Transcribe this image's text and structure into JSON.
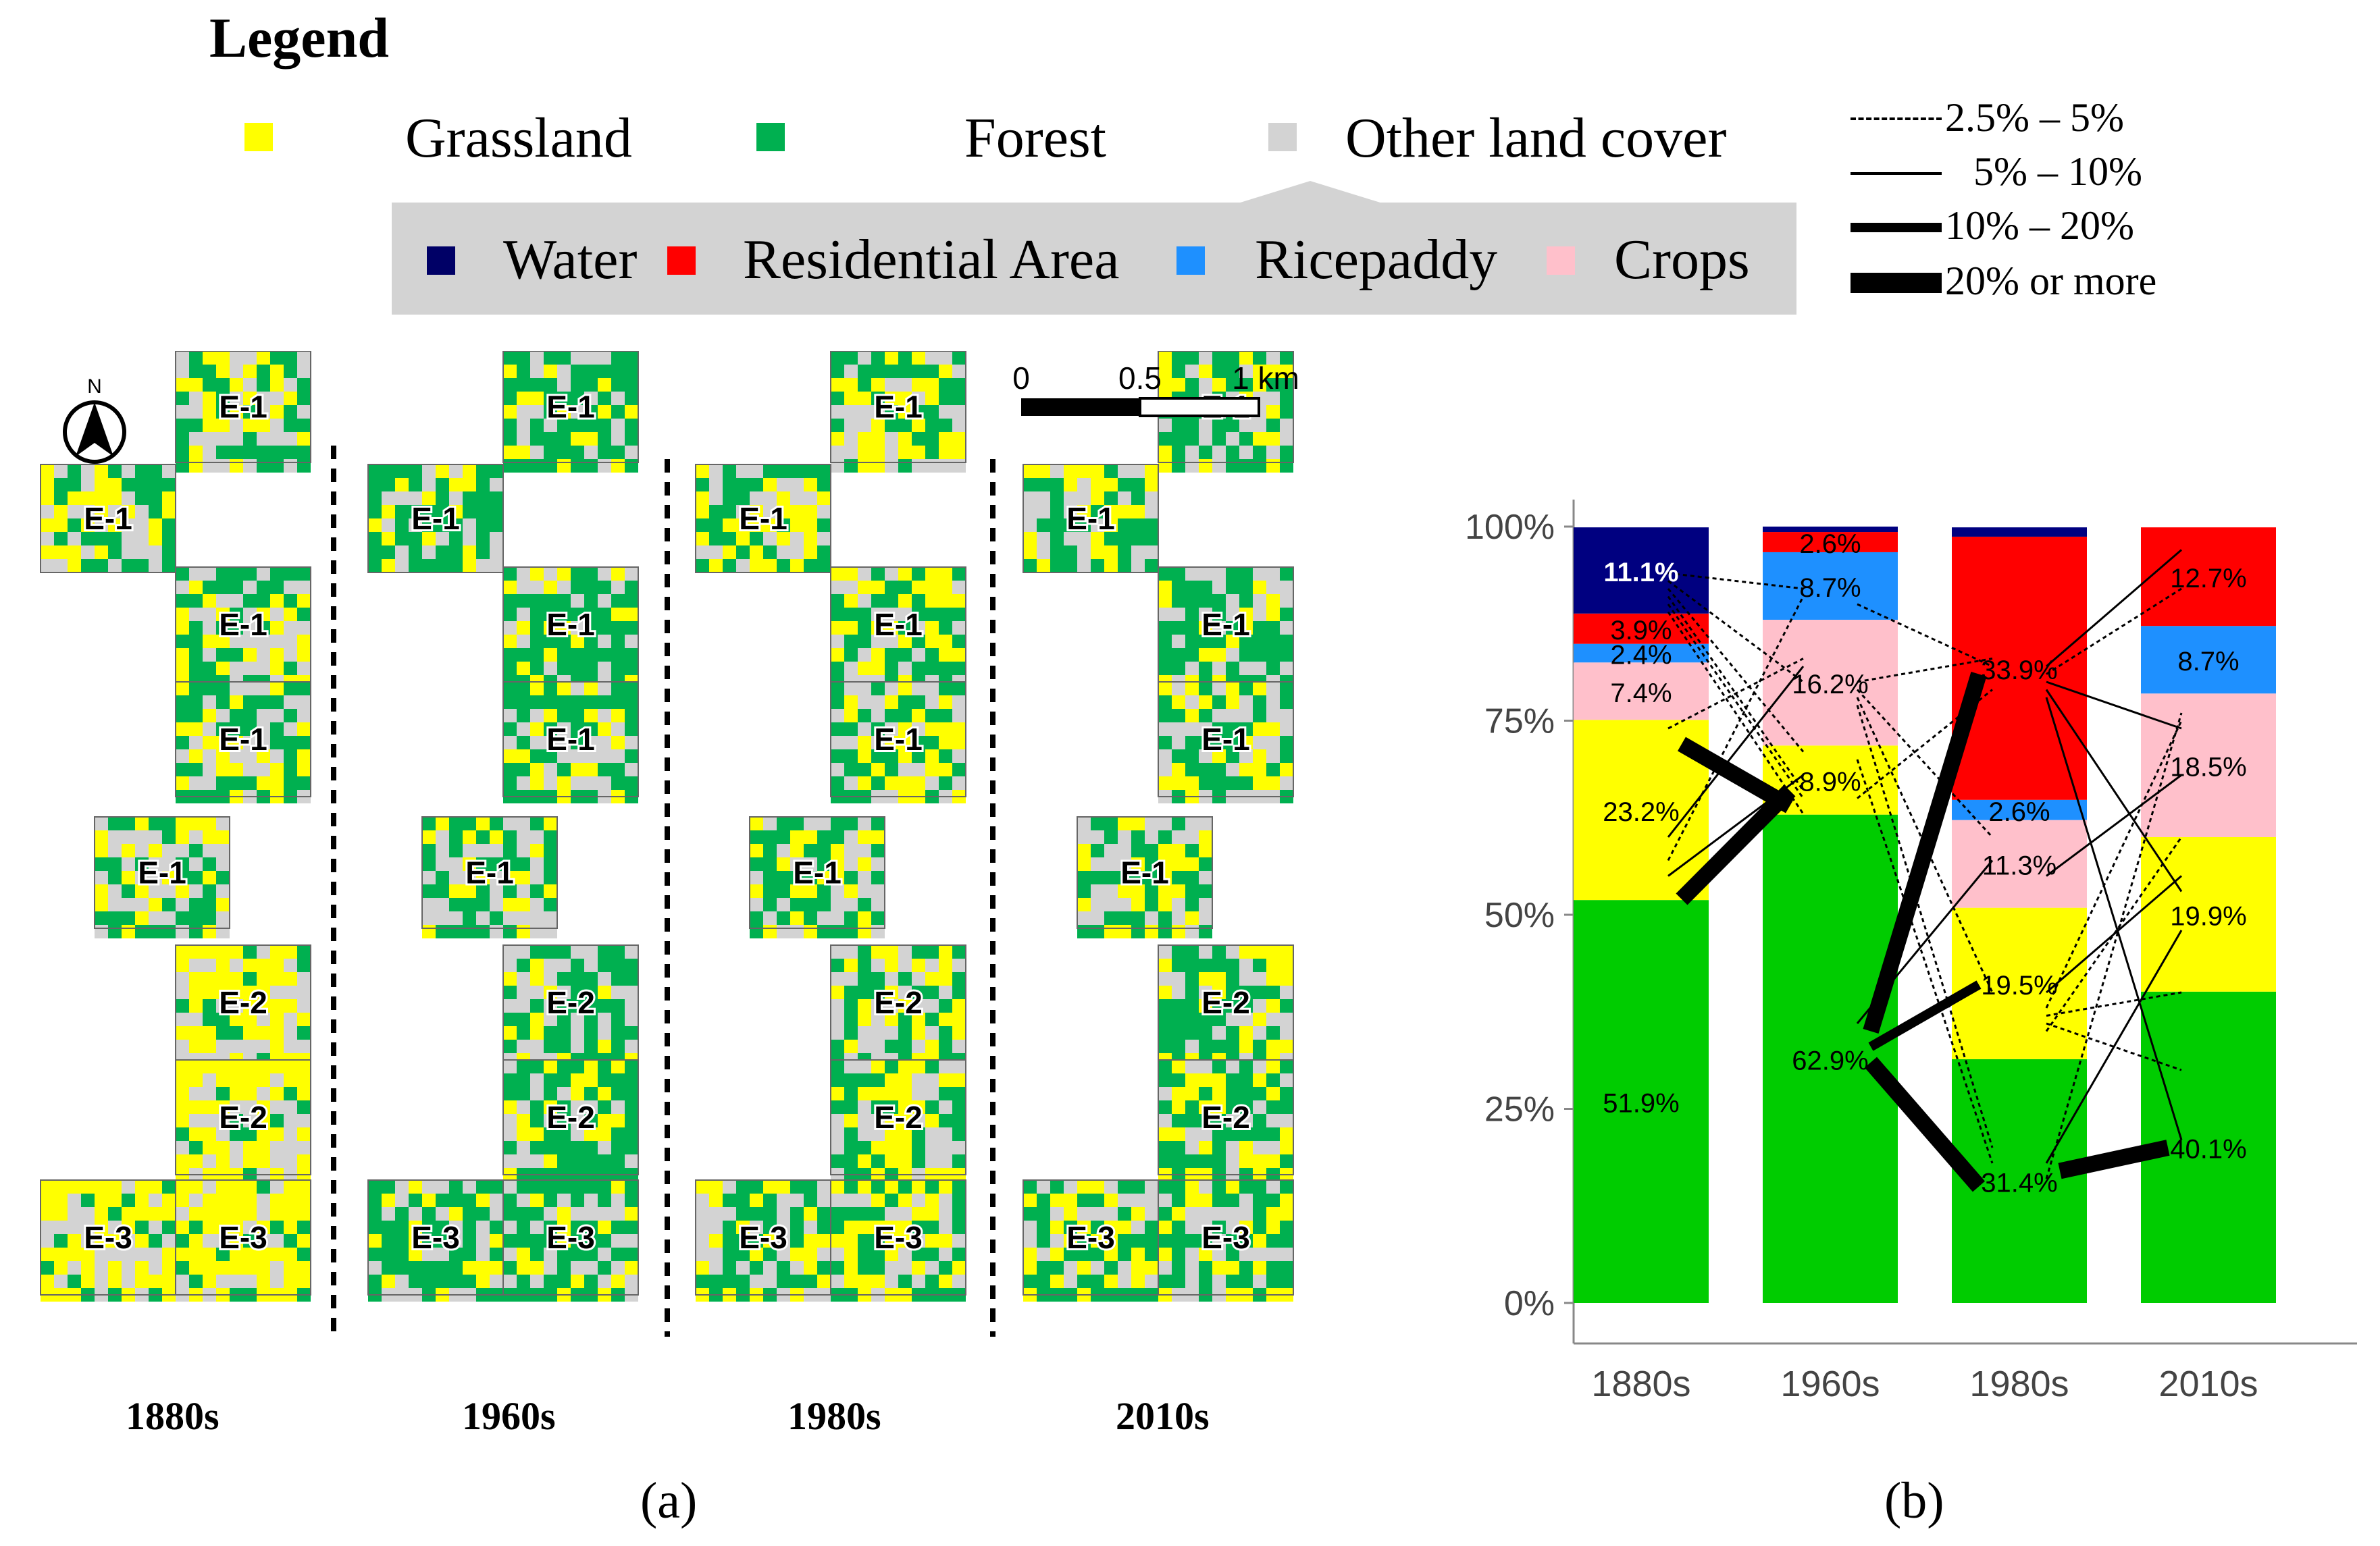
{
  "legend": {
    "title": "Legend",
    "items": [
      {
        "label": "Grassland",
        "color": "#ffff00"
      },
      {
        "label": "Forest",
        "color": "#00b050"
      },
      {
        "label": "Other land cover",
        "color": "#d3d3d3"
      }
    ],
    "sub_items": [
      {
        "label": "Water",
        "color": "#000066"
      },
      {
        "label": "Residential Area",
        "color": "#ff0000"
      },
      {
        "label": "Ricepaddy",
        "color": "#1e90ff"
      },
      {
        "label": "Crops",
        "color": "#ffc0cb"
      }
    ],
    "line_widths": [
      "2.5% –  5%",
      "5% – 10%",
      "10% – 20%",
      "20% or more"
    ]
  },
  "map_panel": {
    "panel_label": "(a)",
    "north": "N",
    "scale": {
      "zero": "0",
      "half": "0.5",
      "end": "1 km"
    },
    "decades": [
      "1880s",
      "1960s",
      "1980s",
      "2010s"
    ],
    "block_labels": [
      "E-1",
      "E-1",
      "E-1",
      "E-1",
      "E-1",
      "E-2",
      "E-2",
      "E-3",
      "E-3"
    ]
  },
  "chart_panel": {
    "panel_label": "(b)"
  },
  "chart_data": {
    "type": "bar",
    "stacked": true,
    "categories": [
      "1880s",
      "1960s",
      "1980s",
      "2010s"
    ],
    "ylim": [
      0,
      100
    ],
    "yticks": [
      "0%",
      "25%",
      "50%",
      "75%",
      "100%"
    ],
    "series": [
      {
        "name": "Forest",
        "color": "#00cc00",
        "values": [
          51.9,
          62.9,
          31.4,
          40.1
        ],
        "labels": [
          "51.9%",
          "62.9%",
          "31.4%",
          "40.1%"
        ]
      },
      {
        "name": "Grassland",
        "color": "#ffff00",
        "values": [
          23.2,
          8.9,
          19.5,
          19.9
        ],
        "labels": [
          "23.2%",
          "8.9%",
          "19.5%",
          "19.9%"
        ]
      },
      {
        "name": "Crops",
        "color": "#ffc0cb",
        "values": [
          7.4,
          16.2,
          11.3,
          18.5
        ],
        "labels": [
          "7.4%",
          "16.2%",
          "11.3%",
          "18.5%"
        ]
      },
      {
        "name": "Ricepaddy",
        "color": "#1e90ff",
        "values": [
          2.4,
          8.7,
          2.6,
          8.7
        ],
        "labels": [
          "2.4%",
          "8.7%",
          "2.6%",
          "8.7%"
        ]
      },
      {
        "name": "Residential Area",
        "color": "#ff0000",
        "values": [
          3.9,
          2.6,
          33.9,
          12.7
        ],
        "labels": [
          "3.9%",
          "2.6%",
          "33.9%",
          "12.7%"
        ]
      },
      {
        "name": "Water",
        "color": "#000080",
        "values": [
          11.1,
          0.7,
          1.2,
          0.0
        ],
        "labels": [
          "11.1%",
          "",
          "",
          ""
        ]
      }
    ],
    "flows": [
      {
        "from": 0,
        "fromPct": 52,
        "to": 1,
        "toPct": 66,
        "cls": 4
      },
      {
        "from": 0,
        "fromPct": 55,
        "to": 1,
        "toPct": 68,
        "cls": 2
      },
      {
        "from": 0,
        "fromPct": 57,
        "to": 1,
        "toPct": 91,
        "cls": 1
      },
      {
        "from": 0,
        "fromPct": 60,
        "to": 1,
        "toPct": 82,
        "cls": 2
      },
      {
        "from": 0,
        "fromPct": 72,
        "to": 1,
        "toPct": 64,
        "cls": 4
      },
      {
        "from": 0,
        "fromPct": 74,
        "to": 1,
        "toPct": 83,
        "cls": 1
      },
      {
        "from": 0,
        "fromPct": 94,
        "to": 1,
        "toPct": 92,
        "cls": 1
      },
      {
        "from": 0,
        "fromPct": 93,
        "to": 1,
        "toPct": 80,
        "cls": 1
      },
      {
        "from": 0,
        "fromPct": 92,
        "to": 1,
        "toPct": 71,
        "cls": 1
      },
      {
        "from": 0,
        "fromPct": 91,
        "to": 1,
        "toPct": 66,
        "cls": 1
      },
      {
        "from": 0,
        "fromPct": 90,
        "to": 1,
        "toPct": 65,
        "cls": 1
      },
      {
        "from": 0,
        "fromPct": 89,
        "to": 1,
        "toPct": 63,
        "cls": 1
      },
      {
        "from": 1,
        "fromPct": 35,
        "to": 2,
        "toPct": 81,
        "cls": 4
      },
      {
        "from": 1,
        "fromPct": 33,
        "to": 2,
        "toPct": 41,
        "cls": 3
      },
      {
        "from": 1,
        "fromPct": 31,
        "to": 2,
        "toPct": 15,
        "cls": 4
      },
      {
        "from": 1,
        "fromPct": 36,
        "to": 2,
        "toPct": 57,
        "cls": 2
      },
      {
        "from": 1,
        "fromPct": 65,
        "to": 2,
        "toPct": 79,
        "cls": 1
      },
      {
        "from": 1,
        "fromPct": 90,
        "to": 2,
        "toPct": 82,
        "cls": 1
      },
      {
        "from": 1,
        "fromPct": 80,
        "to": 2,
        "toPct": 83,
        "cls": 1
      },
      {
        "from": 1,
        "fromPct": 79,
        "to": 2,
        "toPct": 60,
        "cls": 1
      },
      {
        "from": 1,
        "fromPct": 78,
        "to": 2,
        "toPct": 40,
        "cls": 1
      },
      {
        "from": 1,
        "fromPct": 77,
        "to": 2,
        "toPct": 20,
        "cls": 1
      },
      {
        "from": 1,
        "fromPct": 70,
        "to": 2,
        "toPct": 18,
        "cls": 1
      },
      {
        "from": 2,
        "fromPct": 82,
        "to": 3,
        "toPct": 97,
        "cls": 2
      },
      {
        "from": 2,
        "fromPct": 81,
        "to": 3,
        "toPct": 92,
        "cls": 1
      },
      {
        "from": 2,
        "fromPct": 80,
        "to": 3,
        "toPct": 74,
        "cls": 2
      },
      {
        "from": 2,
        "fromPct": 79,
        "to": 3,
        "toPct": 53,
        "cls": 2
      },
      {
        "from": 2,
        "fromPct": 78,
        "to": 3,
        "toPct": 21,
        "cls": 2
      },
      {
        "from": 2,
        "fromPct": 55,
        "to": 3,
        "toPct": 68,
        "cls": 2
      },
      {
        "from": 2,
        "fromPct": 40,
        "to": 3,
        "toPct": 55,
        "cls": 2
      },
      {
        "from": 2,
        "fromPct": 38,
        "to": 3,
        "toPct": 75,
        "cls": 1
      },
      {
        "from": 2,
        "fromPct": 37,
        "to": 3,
        "toPct": 40,
        "cls": 1
      },
      {
        "from": 2,
        "fromPct": 36,
        "to": 3,
        "toPct": 30,
        "cls": 1
      },
      {
        "from": 2,
        "fromPct": 35,
        "to": 3,
        "toPct": 60,
        "cls": 1
      },
      {
        "from": 2,
        "fromPct": 17,
        "to": 3,
        "toPct": 20,
        "cls": 4
      },
      {
        "from": 2,
        "fromPct": 16,
        "to": 3,
        "toPct": 76,
        "cls": 1
      },
      {
        "from": 2,
        "fromPct": 18,
        "to": 3,
        "toPct": 48,
        "cls": 2
      }
    ]
  }
}
